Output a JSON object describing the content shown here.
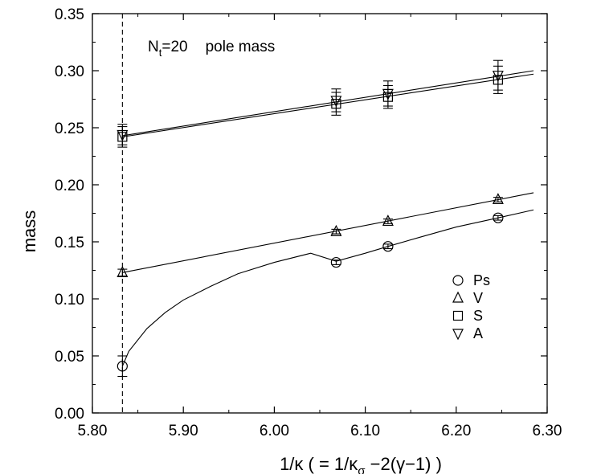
{
  "chart_data": {
    "type": "scatter",
    "annotation": {
      "prefix": "N",
      "subscript": "t",
      "value": "=20",
      "suffix": "pole mass"
    },
    "xlabel": {
      "main": "1/κ  ( = 1/κ",
      "sub": "σ",
      "rest": " −2(γ−1) )"
    },
    "ylabel": "mass",
    "xlim": [
      5.8,
      6.3
    ],
    "ylim": [
      0.0,
      0.35
    ],
    "xticks": [
      "5.80",
      "5.90",
      "6.00",
      "6.10",
      "6.20",
      "6.30"
    ],
    "yticks": [
      "0.00",
      "0.05",
      "0.10",
      "0.15",
      "0.20",
      "0.25",
      "0.30",
      "0.35"
    ],
    "vline_x": 5.833,
    "legend_position": "right",
    "series": [
      {
        "name": "Ps",
        "marker": "circle",
        "points": [
          {
            "x": 5.833,
            "y": 0.041,
            "err": 0.009
          },
          {
            "x": 6.068,
            "y": 0.132,
            "err": 0.002
          },
          {
            "x": 6.125,
            "y": 0.146,
            "err": 0.002
          },
          {
            "x": 6.246,
            "y": 0.171,
            "err": 0.002
          }
        ],
        "fit": [
          [
            5.833,
            0.041
          ],
          [
            5.84,
            0.054
          ],
          [
            5.86,
            0.074
          ],
          [
            5.88,
            0.088
          ],
          [
            5.9,
            0.099
          ],
          [
            5.93,
            0.111
          ],
          [
            5.96,
            0.122
          ],
          [
            6.0,
            0.132
          ],
          [
            6.04,
            0.14
          ],
          [
            6.068,
            0.133
          ],
          [
            6.1,
            0.14
          ],
          [
            6.125,
            0.146
          ],
          [
            6.16,
            0.154
          ],
          [
            6.2,
            0.163
          ],
          [
            6.246,
            0.171
          ],
          [
            6.285,
            0.178
          ]
        ]
      },
      {
        "name": "V",
        "marker": "triangle-up",
        "points": [
          {
            "x": 5.833,
            "y": 0.123,
            "err": 0.003
          },
          {
            "x": 6.068,
            "y": 0.159,
            "err": 0.002
          },
          {
            "x": 6.125,
            "y": 0.168,
            "err": 0.002
          },
          {
            "x": 6.246,
            "y": 0.187,
            "err": 0.002
          }
        ],
        "fit": [
          [
            5.833,
            0.123
          ],
          [
            6.285,
            0.193
          ]
        ]
      },
      {
        "name": "S",
        "marker": "square",
        "points": [
          {
            "x": 5.833,
            "y": 0.242,
            "err": 0.009
          },
          {
            "x": 6.068,
            "y": 0.271,
            "err": 0.01
          },
          {
            "x": 6.125,
            "y": 0.277,
            "err": 0.01
          },
          {
            "x": 6.246,
            "y": 0.292,
            "err": 0.012
          }
        ],
        "fit": [
          [
            5.833,
            0.242
          ],
          [
            6.285,
            0.297
          ]
        ]
      },
      {
        "name": "A",
        "marker": "triangle-down",
        "points": [
          {
            "x": 5.833,
            "y": 0.244,
            "err": 0.009
          },
          {
            "x": 6.068,
            "y": 0.274,
            "err": 0.01
          },
          {
            "x": 6.125,
            "y": 0.28,
            "err": 0.011
          },
          {
            "x": 6.246,
            "y": 0.296,
            "err": 0.013
          }
        ],
        "fit": [
          [
            5.833,
            0.243
          ],
          [
            6.285,
            0.3
          ]
        ]
      }
    ]
  }
}
